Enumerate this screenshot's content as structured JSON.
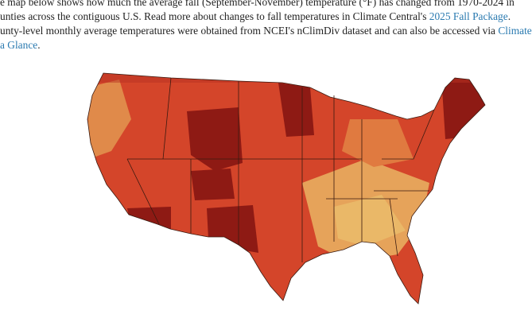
{
  "intro": {
    "line1": "e map below shows how much the average fall (September-November) temperature (°F) has changed from 1970-2024 in",
    "line2": "unties across the contiguous U.S. Read more about changes to fall temperatures in Climate Central's",
    "link1": "2025 Fall Package",
    "line2_end": ".",
    "line3": "unty-level monthly average temperatures were obtained from NCEI's nClimDiv dataset and can also be accessed via",
    "link2_a": "Climate",
    "link2_b": "a Glance",
    "line4_end": "."
  }
}
